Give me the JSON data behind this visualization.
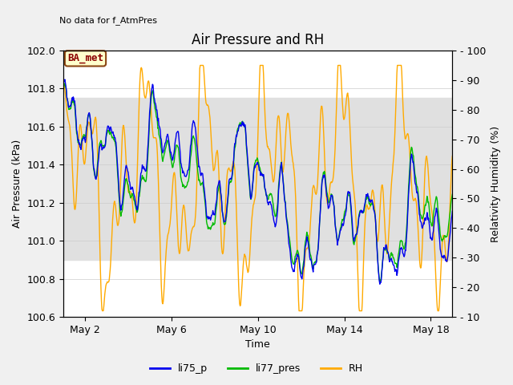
{
  "title": "Air Pressure and RH",
  "no_data_text": "No data for f_AtmPres",
  "ba_met_label": "BA_met",
  "xlabel": "Time",
  "ylabel_left": "Air Pressure (kPa)",
  "ylabel_right": "Relativity Humidity (%)",
  "ylim_left": [
    100.6,
    102.0
  ],
  "ylim_right": [
    10,
    100
  ],
  "yticks_left": [
    100.6,
    100.8,
    101.0,
    101.2,
    101.4,
    101.6,
    101.8,
    102.0
  ],
  "yticks_right": [
    10,
    20,
    30,
    40,
    50,
    60,
    70,
    80,
    90,
    100
  ],
  "xtick_labels": [
    "May 2",
    "May 6",
    "May 10",
    "May 14",
    "May 18"
  ],
  "xtick_positions": [
    1,
    5,
    9,
    13,
    17
  ],
  "color_li75_p": "#0000ee",
  "color_li77_pres": "#00bb00",
  "color_rh": "#ffaa00",
  "shaded_region_low": 100.9,
  "shaded_region_high": 101.75,
  "shaded_color": "#e0e0e0",
  "plot_bg": "#ffffff",
  "fig_bg": "#f0f0f0",
  "linewidth": 1.0,
  "title_fontsize": 12,
  "label_fontsize": 9,
  "tick_fontsize": 9,
  "legend_fontsize": 9
}
